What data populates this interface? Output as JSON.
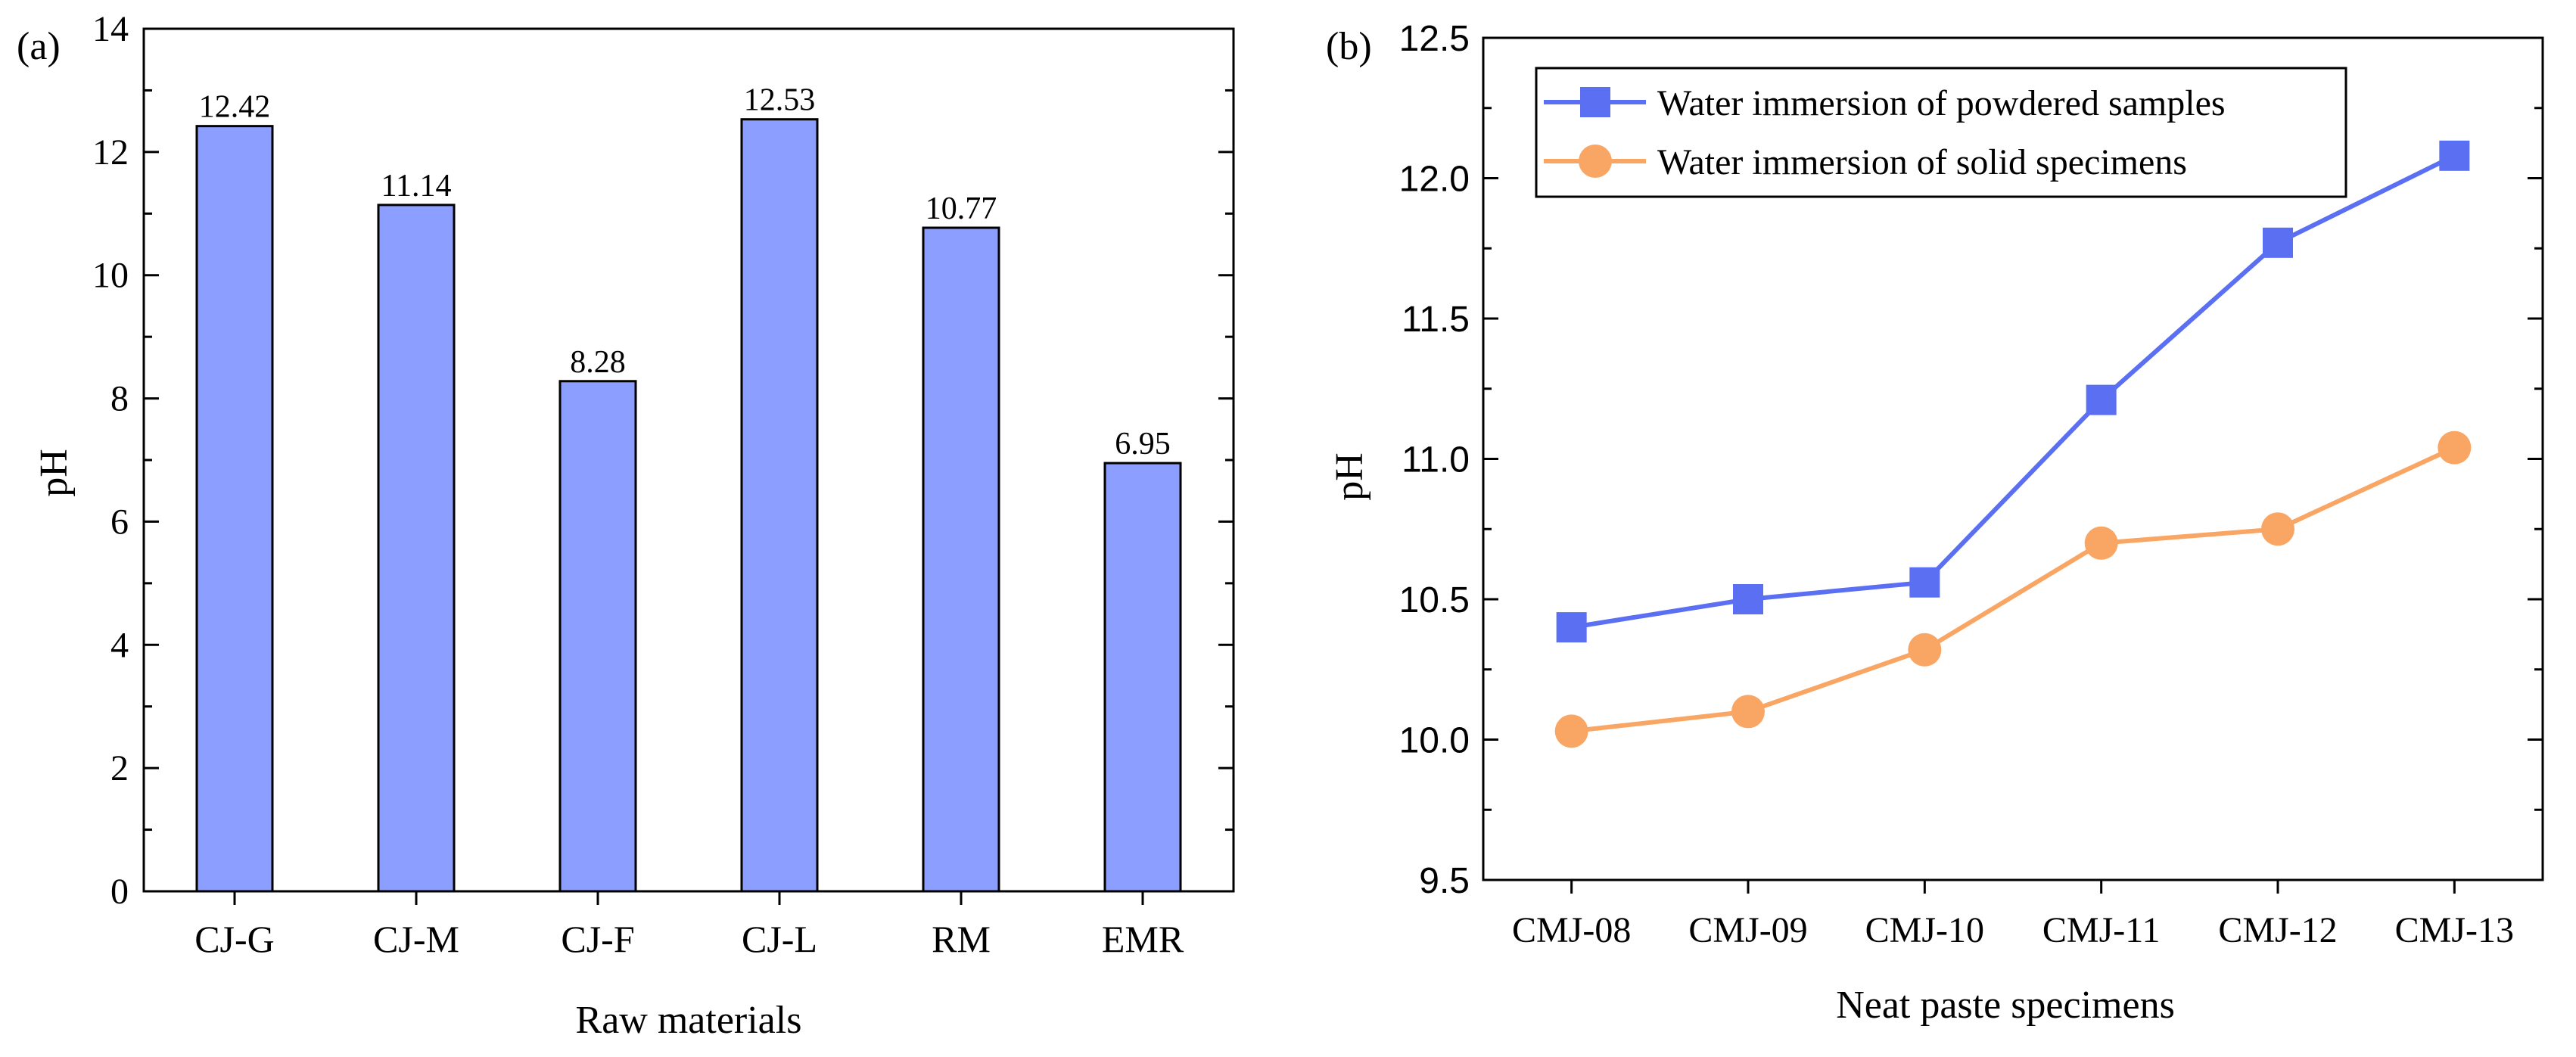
{
  "chart_data": [
    {
      "type": "bar",
      "panel_label": "(a)",
      "categories": [
        "CJ-G",
        "CJ-M",
        "CJ-F",
        "CJ-L",
        "RM",
        "EMR"
      ],
      "values": [
        12.42,
        11.14,
        8.28,
        12.53,
        10.77,
        6.95
      ],
      "value_labels": [
        "12.42",
        "11.14",
        "8.28",
        "12.53",
        "10.77",
        "6.95"
      ],
      "xlabel": "Raw materials",
      "ylabel": "pH",
      "ylim": [
        0,
        14
      ],
      "yticks": [
        0,
        2,
        4,
        6,
        8,
        10,
        12,
        14
      ],
      "ytick_labels": [
        "0",
        "2",
        "4",
        "6",
        "8",
        "10",
        "12",
        "14"
      ],
      "bar_color": "#8c9eff",
      "grid": false
    },
    {
      "type": "line",
      "panel_label": "(b)",
      "categories": [
        "CMJ-08",
        "CMJ-09",
        "CMJ-10",
        "CMJ-11",
        "CMJ-12",
        "CMJ-13"
      ],
      "series": [
        {
          "name": "Water immersion of powdered samples",
          "values": [
            10.4,
            10.5,
            10.56,
            11.21,
            11.77,
            12.08
          ],
          "color": "#5b6ff2",
          "marker": "square"
        },
        {
          "name": "Water immersion of solid specimens",
          "values": [
            10.03,
            10.1,
            10.32,
            10.7,
            10.75,
            11.04
          ],
          "color": "#f9a664",
          "marker": "circle"
        }
      ],
      "xlabel": "Neat paste specimens",
      "ylabel": "pH",
      "ylim": [
        9.5,
        12.5
      ],
      "yticks": [
        9.5,
        10.0,
        10.5,
        11.0,
        11.5,
        12.0,
        12.5
      ],
      "ytick_labels": [
        "9.5",
        "10.0",
        "10.5",
        "11.0",
        "11.5",
        "12.0",
        "12.5"
      ],
      "legend_position": "top-left",
      "grid": false
    }
  ]
}
